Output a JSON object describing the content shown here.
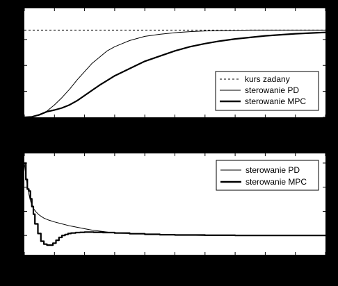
{
  "figure": {
    "background": "#000000",
    "plot_background": "#ffffff",
    "line_color": "#000000"
  },
  "chart_data": [
    {
      "type": "line",
      "xlim": [
        0,
        10
      ],
      "ylim": [
        0,
        1.05
      ],
      "grid": false,
      "legend_position": "bottom-right",
      "series": [
        {
          "name": "kurs zadany",
          "style": "dashed",
          "x": [
            0,
            10
          ],
          "y": [
            0.84,
            0.84
          ]
        },
        {
          "name": "sterowanie PD",
          "style": "thin",
          "x": [
            0,
            0.25,
            0.5,
            0.75,
            1.0,
            1.25,
            1.5,
            1.75,
            2.0,
            2.25,
            2.5,
            2.75,
            3.0,
            3.25,
            3.5,
            3.75,
            4.0,
            4.5,
            5.0,
            5.5,
            6.0,
            6.5,
            7.0,
            7.5,
            8.0,
            9.0,
            10.0
          ],
          "y": [
            0.0,
            0.004,
            0.02,
            0.06,
            0.12,
            0.19,
            0.27,
            0.36,
            0.44,
            0.52,
            0.58,
            0.64,
            0.68,
            0.71,
            0.74,
            0.76,
            0.78,
            0.8,
            0.815,
            0.825,
            0.832,
            0.836,
            0.838,
            0.84,
            0.84,
            0.84,
            0.84
          ]
        },
        {
          "name": "sterowanie MPC",
          "style": "thick",
          "x": [
            0,
            0.25,
            0.5,
            0.75,
            1.0,
            1.25,
            1.5,
            1.75,
            2.0,
            2.25,
            2.5,
            2.75,
            3.0,
            3.5,
            4.0,
            4.5,
            5.0,
            5.5,
            6.0,
            6.5,
            7.0,
            7.5,
            8.0,
            8.5,
            9.0,
            9.5,
            10.0
          ],
          "y": [
            0.0,
            0.005,
            0.025,
            0.055,
            0.07,
            0.09,
            0.12,
            0.16,
            0.21,
            0.26,
            0.31,
            0.355,
            0.4,
            0.47,
            0.54,
            0.59,
            0.64,
            0.68,
            0.71,
            0.735,
            0.755,
            0.77,
            0.785,
            0.795,
            0.805,
            0.812,
            0.818
          ]
        }
      ]
    },
    {
      "type": "line",
      "xlim": [
        0,
        10
      ],
      "ylim": [
        -0.2,
        0.85
      ],
      "grid": false,
      "legend_position": "top-right",
      "series": [
        {
          "name": "sterowanie PD",
          "style": "thin",
          "x": [
            0,
            0.05,
            0.1,
            0.15,
            0.2,
            0.3,
            0.4,
            0.5,
            0.65,
            0.8,
            1.0,
            1.25,
            1.5,
            1.75,
            2.0,
            2.25,
            2.5,
            2.75,
            3.0,
            3.5,
            4.0,
            5.0,
            6.0,
            7.0,
            8.0,
            9.0,
            10.0
          ],
          "y": [
            0.75,
            0.62,
            0.52,
            0.43,
            0.36,
            0.28,
            0.24,
            0.21,
            0.18,
            0.16,
            0.14,
            0.12,
            0.1,
            0.085,
            0.07,
            0.055,
            0.045,
            0.035,
            0.025,
            0.02,
            0.015,
            0.005,
            0.0,
            0.0,
            0.0,
            0.0,
            0.0
          ]
        },
        {
          "name": "sterowanie MPC",
          "style": "thick-stepped",
          "x": [
            0,
            0.05,
            0.1,
            0.15,
            0.2,
            0.25,
            0.3,
            0.35,
            0.45,
            0.55,
            0.65,
            0.75,
            0.85,
            0.95,
            1.05,
            1.15,
            1.25,
            1.35,
            1.45,
            1.55,
            1.7,
            1.85,
            2.0,
            2.3,
            2.6,
            3.0,
            3.5,
            4.0,
            4.5,
            5.0,
            6.0,
            7.0,
            8.0,
            9.0,
            10.0
          ],
          "y": [
            0.75,
            0.58,
            0.48,
            0.46,
            0.38,
            0.3,
            0.22,
            0.12,
            0.02,
            -0.06,
            -0.09,
            -0.1,
            -0.1,
            -0.08,
            -0.05,
            -0.02,
            0.0,
            0.01,
            0.02,
            0.025,
            0.03,
            0.032,
            0.035,
            0.033,
            0.03,
            0.025,
            0.018,
            0.012,
            0.008,
            0.005,
            0.002,
            0.0,
            0.0,
            0.0,
            0.0
          ]
        }
      ]
    }
  ]
}
